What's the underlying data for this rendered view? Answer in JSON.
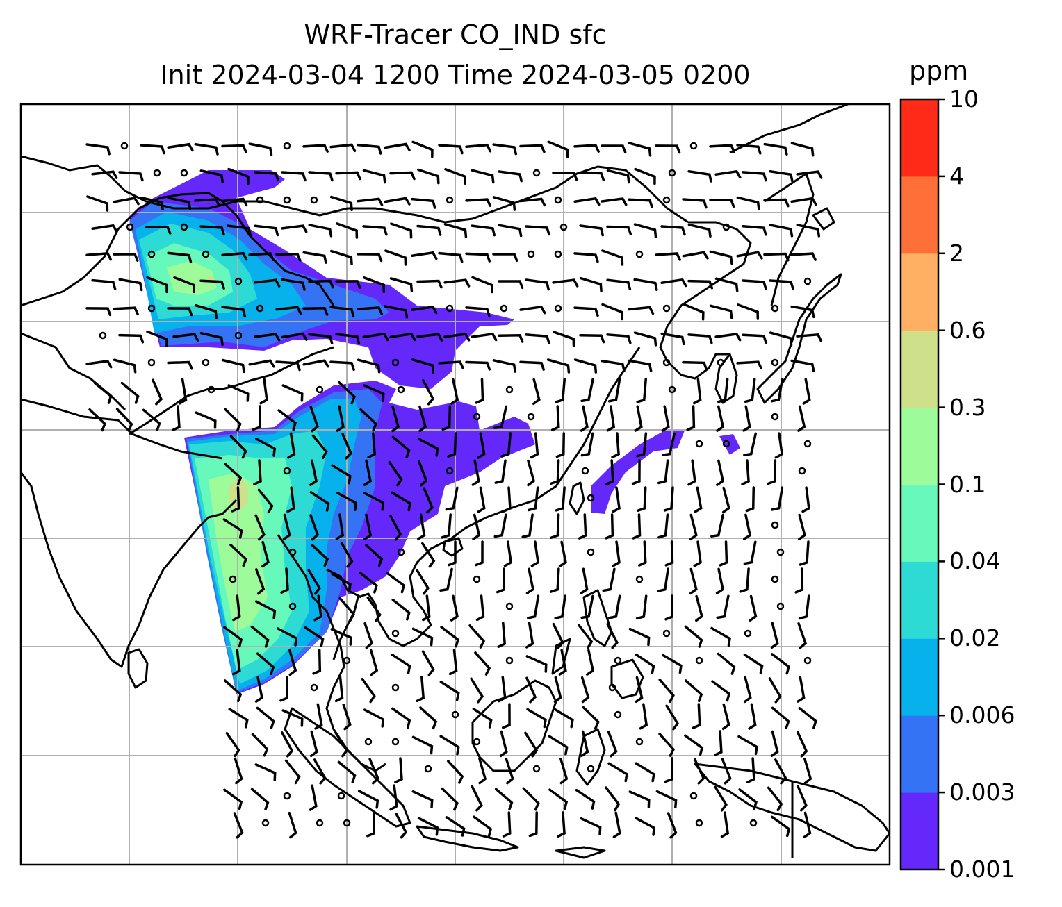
{
  "figure": {
    "title_line1": "WRF-Tracer CO_IND sfc",
    "title_line2": "Init 2024-03-04 1200 Time 2024-03-05 0200"
  },
  "colorbar": {
    "units": "ppm",
    "levels": [
      "0.001",
      "0.003",
      "0.006",
      "0.02",
      "0.04",
      "0.1",
      "0.3",
      "0.6",
      "2",
      "4",
      "10"
    ],
    "colors": [
      "#6428fa",
      "#3474f4",
      "#06b1ec",
      "#2ddbd4",
      "#66f9bb",
      "#9dfb99",
      "#cfe08a",
      "#ffb062",
      "#ff7038",
      "#ff2b18"
    ]
  },
  "map": {
    "gridline_color": "#b0b0b0",
    "coastline_color": "#000000",
    "wind_barb_color": "#000000",
    "background": "#ffffff"
  }
}
